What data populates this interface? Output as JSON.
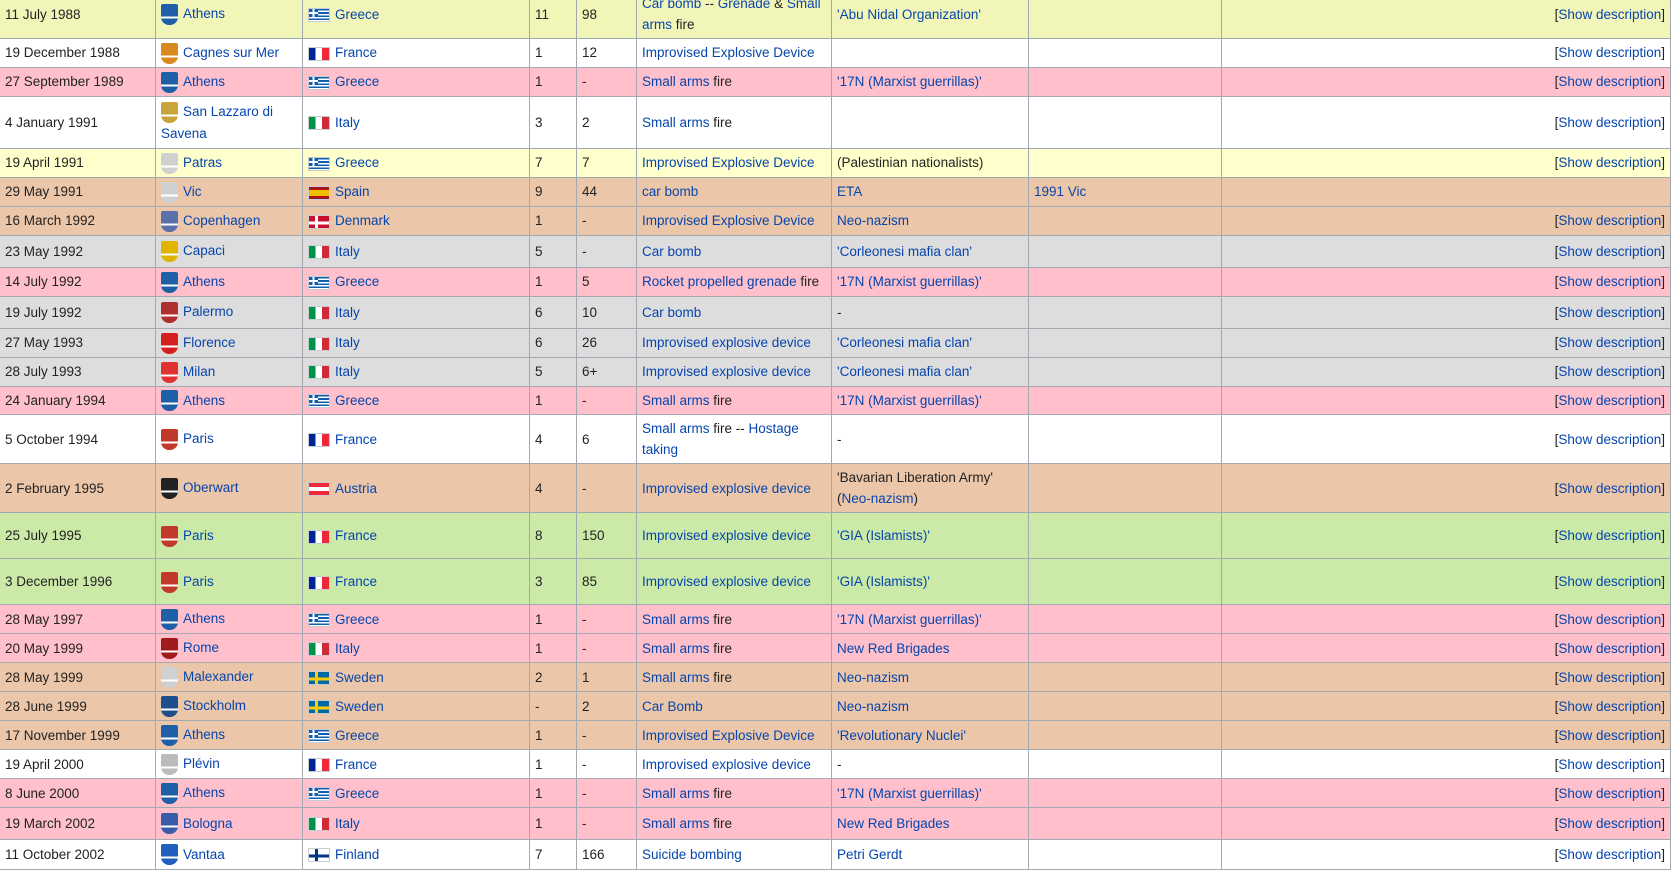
{
  "link_color": "#0645ad",
  "row_colors": {
    "yellowgreen": "#f2f5b8",
    "white": "#ffffff",
    "pink": "#ffc0cb",
    "lightyellow": "#ffffcc",
    "tan": "#ecc6a8",
    "gray": "#dddddd",
    "green": "#cbeaa7"
  },
  "rows": [
    {
      "bg": "yellowgreen",
      "date": "11 July 1988",
      "city": "Athens",
      "coa_icon": "athens-coat-of-arms",
      "coa_color": "#1e5fa8",
      "country": "Greece",
      "flag": "greece-flag",
      "killed": "11",
      "injured": "98",
      "type_parts": [
        {
          "t": "Car bomb",
          "l": true
        },
        {
          "t": " -- ",
          "l": false
        },
        {
          "t": "Grenade",
          "l": true
        },
        {
          "t": " & ",
          "l": false
        },
        {
          "t": "Small arms",
          "l": true
        },
        {
          "t": " fire",
          "l": false
        }
      ],
      "perp_parts": [
        {
          "t": "'Abu Nidal Organization'",
          "l": true
        }
      ],
      "part_of": "",
      "desc": "[Show description]"
    },
    {
      "bg": "white",
      "date": "19 December 1988",
      "city": "Cagnes sur Mer",
      "coa_icon": "cagnes-sur-mer-coat-of-arms",
      "coa_color": "#d98a1f",
      "country": "France",
      "flag": "france-flag",
      "killed": "1",
      "injured": "12",
      "type_parts": [
        {
          "t": "Improvised Explosive Device",
          "l": true
        }
      ],
      "perp_parts": [],
      "part_of": "",
      "desc": "[Show description]"
    },
    {
      "bg": "pink",
      "date": "27 September 1989",
      "city": "Athens",
      "coa_icon": "athens-coat-of-arms",
      "coa_color": "#1e5fa8",
      "country": "Greece",
      "flag": "greece-flag",
      "killed": "1",
      "injured": "-",
      "type_parts": [
        {
          "t": "Small arms",
          "l": true
        },
        {
          "t": " fire",
          "l": false
        }
      ],
      "perp_parts": [
        {
          "t": "'17N (Marxist guerrillas)'",
          "l": true
        }
      ],
      "part_of": "",
      "desc": "[Show description]"
    },
    {
      "bg": "white",
      "date": "4 January 1991",
      "city": "San Lazzaro di Savena",
      "coa_icon": "san-lazzaro-coat-of-arms",
      "coa_color": "#c9a43a",
      "country": "Italy",
      "flag": "italy-flag",
      "killed": "3",
      "injured": "2",
      "type_parts": [
        {
          "t": "Small arms",
          "l": true
        },
        {
          "t": " fire",
          "l": false
        }
      ],
      "perp_parts": [],
      "part_of": "",
      "desc": "[Show description]"
    },
    {
      "bg": "lightyellow",
      "date": "19 April 1991",
      "city": "Patras",
      "coa_icon": "placeholder-coat-of-arms",
      "coa_color": "#d0d0d0",
      "country": "Greece",
      "flag": "greece-flag",
      "killed": "7",
      "injured": "7",
      "type_parts": [
        {
          "t": "Improvised Explosive Device",
          "l": true
        }
      ],
      "perp_parts": [
        {
          "t": "(Palestinian nationalists)",
          "l": false
        }
      ],
      "part_of": "",
      "desc": "[Show description]"
    },
    {
      "bg": "tan",
      "date": "29 May 1991",
      "city": "Vic",
      "coa_icon": "placeholder-coat-of-arms",
      "coa_color": "#d0d0d0",
      "country": "Spain",
      "flag": "spain-flag",
      "killed": "9",
      "injured": "44",
      "type_parts": [
        {
          "t": "car bomb",
          "l": true
        }
      ],
      "perp_parts": [
        {
          "t": "ETA",
          "l": true
        }
      ],
      "part_of": "1991 Vic",
      "desc": ""
    },
    {
      "bg": "tan",
      "date": "16 March 1992",
      "city": "Copenhagen",
      "coa_icon": "copenhagen-coat-of-arms",
      "coa_color": "#5b6fa8",
      "country": "Denmark",
      "flag": "denmark-flag",
      "killed": "1",
      "injured": "-",
      "type_parts": [
        {
          "t": "Improvised Explosive Device",
          "l": true
        }
      ],
      "perp_parts": [
        {
          "t": "Neo-nazism",
          "l": true
        }
      ],
      "part_of": "",
      "desc": "[Show description]"
    },
    {
      "bg": "gray",
      "date": "23 May 1992",
      "city": "Capaci",
      "coa_icon": "capaci-coat-of-arms",
      "coa_color": "#e0b400",
      "country": "Italy",
      "flag": "italy-flag",
      "killed": "5",
      "injured": "-",
      "type_parts": [
        {
          "t": "Car bomb",
          "l": true
        }
      ],
      "perp_parts": [
        {
          "t": "'Corleonesi mafia clan'",
          "l": true
        }
      ],
      "part_of": "",
      "desc": "[Show description]"
    },
    {
      "bg": "pink",
      "date": "14 July 1992",
      "city": "Athens",
      "coa_icon": "athens-coat-of-arms",
      "coa_color": "#1e5fa8",
      "country": "Greece",
      "flag": "greece-flag",
      "killed": "1",
      "injured": "5",
      "type_parts": [
        {
          "t": "Rocket propelled grenade",
          "l": true
        },
        {
          "t": " fire",
          "l": false
        }
      ],
      "perp_parts": [
        {
          "t": "'17N (Marxist guerrillas)'",
          "l": true
        }
      ],
      "part_of": "",
      "desc": "[Show description]"
    },
    {
      "bg": "gray",
      "date": "19 July 1992",
      "city": "Palermo",
      "coa_icon": "palermo-coat-of-arms",
      "coa_color": "#b03030",
      "country": "Italy",
      "flag": "italy-flag",
      "killed": "6",
      "injured": "10",
      "type_parts": [
        {
          "t": "Car bomb",
          "l": true
        }
      ],
      "perp_parts": [
        {
          "t": "-",
          "l": false
        }
      ],
      "part_of": "",
      "desc": "[Show description]"
    },
    {
      "bg": "gray",
      "date": "27 May 1993",
      "city": "Florence",
      "coa_icon": "florence-coat-of-arms",
      "coa_color": "#d62020",
      "country": "Italy",
      "flag": "italy-flag",
      "killed": "6",
      "injured": "26",
      "type_parts": [
        {
          "t": "Improvised explosive device",
          "l": true
        }
      ],
      "perp_parts": [
        {
          "t": "'Corleonesi mafia clan'",
          "l": true
        }
      ],
      "part_of": "",
      "desc": "[Show description]"
    },
    {
      "bg": "gray",
      "date": "28 July 1993",
      "city": "Milan",
      "coa_icon": "milan-coat-of-arms",
      "coa_color": "#e03030",
      "country": "Italy",
      "flag": "italy-flag",
      "killed": "5",
      "injured": "6+",
      "type_parts": [
        {
          "t": "Improvised explosive device",
          "l": true
        }
      ],
      "perp_parts": [
        {
          "t": "'Corleonesi mafia clan'",
          "l": true
        }
      ],
      "part_of": "",
      "desc": "[Show description]"
    },
    {
      "bg": "pink",
      "date": "24 January 1994",
      "city": "Athens",
      "coa_icon": "athens-coat-of-arms",
      "coa_color": "#1e5fa8",
      "country": "Greece",
      "flag": "greece-flag",
      "killed": "1",
      "injured": "-",
      "type_parts": [
        {
          "t": "Small arms",
          "l": true
        },
        {
          "t": " fire",
          "l": false
        }
      ],
      "perp_parts": [
        {
          "t": "'17N (Marxist guerrillas)'",
          "l": true
        }
      ],
      "part_of": "",
      "desc": "[Show description]"
    },
    {
      "bg": "white",
      "date": "5 October 1994",
      "city": "Paris",
      "coa_icon": "paris-coat-of-arms",
      "coa_color": "#c0392b",
      "country": "France",
      "flag": "france-flag",
      "killed": "4",
      "injured": "6",
      "type_parts": [
        {
          "t": "Small arms",
          "l": true
        },
        {
          "t": " fire -- ",
          "l": false
        },
        {
          "t": "Hostage taking",
          "l": true
        }
      ],
      "perp_parts": [
        {
          "t": "-",
          "l": false
        }
      ],
      "part_of": "",
      "desc": "[Show description]"
    },
    {
      "bg": "tan",
      "date": "2 February 1995",
      "city": "Oberwart",
      "coa_icon": "oberwart-coat-of-arms",
      "coa_color": "#222222",
      "country": "Austria",
      "flag": "austria-flag",
      "killed": "4",
      "injured": "-",
      "type_parts": [
        {
          "t": "Improvised explosive device",
          "l": true
        }
      ],
      "perp_parts": [
        {
          "t": "'Bavarian Liberation Army' (",
          "l": false
        },
        {
          "t": "Neo-nazism",
          "l": true
        },
        {
          "t": ")",
          "l": false
        }
      ],
      "part_of": "",
      "desc": "[Show description]"
    },
    {
      "bg": "green",
      "date": "25 July 1995",
      "city": "Paris",
      "coa_icon": "paris-coat-of-arms",
      "coa_color": "#c0392b",
      "country": "France",
      "flag": "france-flag",
      "killed": "8",
      "injured": "150",
      "type_parts": [
        {
          "t": "Improvised explosive device",
          "l": true
        }
      ],
      "perp_parts": [
        {
          "t": "'GIA (Islamists)'",
          "l": true
        }
      ],
      "part_of": "",
      "desc": "[Show description]"
    },
    {
      "bg": "green",
      "date": "3 December 1996",
      "city": "Paris",
      "coa_icon": "paris-coat-of-arms",
      "coa_color": "#c0392b",
      "country": "France",
      "flag": "france-flag",
      "killed": "3",
      "injured": "85",
      "type_parts": [
        {
          "t": "Improvised explosive device",
          "l": true
        }
      ],
      "perp_parts": [
        {
          "t": "'GIA (Islamists)'",
          "l": true
        }
      ],
      "part_of": "",
      "desc": "[Show description]"
    },
    {
      "bg": "pink",
      "date": "28 May 1997",
      "city": "Athens",
      "coa_icon": "athens-coat-of-arms",
      "coa_color": "#1e5fa8",
      "country": "Greece",
      "flag": "greece-flag",
      "killed": "1",
      "injured": "-",
      "type_parts": [
        {
          "t": "Small arms",
          "l": true
        },
        {
          "t": " fire",
          "l": false
        }
      ],
      "perp_parts": [
        {
          "t": "'17N (Marxist guerrillas)'",
          "l": true
        }
      ],
      "part_of": "",
      "desc": "[Show description]"
    },
    {
      "bg": "pink",
      "date": "20 May 1999",
      "city": "Rome",
      "coa_icon": "rome-coat-of-arms",
      "coa_color": "#a01c1c",
      "country": "Italy",
      "flag": "italy-flag",
      "killed": "1",
      "injured": "-",
      "type_parts": [
        {
          "t": "Small arms",
          "l": true
        },
        {
          "t": " fire",
          "l": false
        }
      ],
      "perp_parts": [
        {
          "t": "New Red Brigades",
          "l": true
        }
      ],
      "part_of": "",
      "desc": "[Show description]"
    },
    {
      "bg": "tan",
      "date": "28 May 1999",
      "city": "Malexander",
      "coa_icon": "placeholder-coat-of-arms",
      "coa_color": "#d0d0d0",
      "country": "Sweden",
      "flag": "sweden-flag",
      "killed": "2",
      "injured": "1",
      "type_parts": [
        {
          "t": "Small arms",
          "l": true
        },
        {
          "t": " fire",
          "l": false
        }
      ],
      "perp_parts": [
        {
          "t": "Neo-nazism",
          "l": true
        }
      ],
      "part_of": "",
      "desc": "[Show description]"
    },
    {
      "bg": "tan",
      "date": "28 June 1999",
      "city": "Stockholm",
      "coa_icon": "stockholm-coat-of-arms",
      "coa_color": "#1f4e8c",
      "country": "Sweden",
      "flag": "sweden-flag",
      "killed": "-",
      "injured": "2",
      "type_parts": [
        {
          "t": "Car Bomb",
          "l": true
        }
      ],
      "perp_parts": [
        {
          "t": "Neo-nazism",
          "l": true
        }
      ],
      "part_of": "",
      "desc": "[Show description]"
    },
    {
      "bg": "tan",
      "date": "17 November 1999",
      "city": "Athens",
      "coa_icon": "athens-coat-of-arms",
      "coa_color": "#1e5fa8",
      "country": "Greece",
      "flag": "greece-flag",
      "killed": "1",
      "injured": "-",
      "type_parts": [
        {
          "t": "Improvised Explosive Device",
          "l": true
        }
      ],
      "perp_parts": [
        {
          "t": "'Revolutionary Nuclei'",
          "l": true
        }
      ],
      "part_of": "",
      "desc": "[Show description]"
    },
    {
      "bg": "white",
      "date": "19 April 2000",
      "city": "Plévin",
      "coa_icon": "plevin-coat-of-arms",
      "coa_color": "#bbbbbb",
      "country": "France",
      "flag": "france-flag",
      "killed": "1",
      "injured": "-",
      "type_parts": [
        {
          "t": "Improvised explosive device",
          "l": true
        }
      ],
      "perp_parts": [
        {
          "t": "-",
          "l": false
        }
      ],
      "part_of": "",
      "desc": "[Show description]"
    },
    {
      "bg": "pink",
      "date": "8 June 2000",
      "city": "Athens",
      "coa_icon": "athens-coat-of-arms",
      "coa_color": "#1e5fa8",
      "country": "Greece",
      "flag": "greece-flag",
      "killed": "1",
      "injured": "-",
      "type_parts": [
        {
          "t": "Small arms",
          "l": true
        },
        {
          "t": " fire",
          "l": false
        }
      ],
      "perp_parts": [
        {
          "t": "'17N (Marxist guerrillas)'",
          "l": true
        }
      ],
      "part_of": "",
      "desc": "[Show description]"
    },
    {
      "bg": "pink",
      "date": "19 March 2002",
      "city": "Bologna",
      "coa_icon": "bologna-coat-of-arms",
      "coa_color": "#3a5ba8",
      "country": "Italy",
      "flag": "italy-flag",
      "killed": "1",
      "injured": "-",
      "type_parts": [
        {
          "t": "Small arms",
          "l": true
        },
        {
          "t": " fire",
          "l": false
        }
      ],
      "perp_parts": [
        {
          "t": "New Red Brigades",
          "l": true
        }
      ],
      "part_of": "",
      "desc": "[Show description]"
    },
    {
      "bg": "white",
      "date": "11 October 2002",
      "city": "Vantaa",
      "coa_icon": "vantaa-coat-of-arms",
      "coa_color": "#1f5fbf",
      "country": "Finland",
      "flag": "finland-flag",
      "killed": "7",
      "injured": "166",
      "type_parts": [
        {
          "t": "Suicide bombing",
          "l": true
        }
      ],
      "perp_parts": [
        {
          "t": "Petri Gerdt",
          "l": true
        }
      ],
      "part_of": "",
      "desc": "[Show description]"
    }
  ]
}
